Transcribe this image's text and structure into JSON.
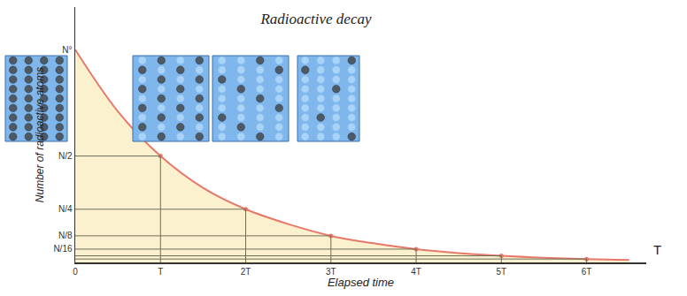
{
  "chart_data": {
    "type": "area",
    "title": "Radioactive decay",
    "x_label": "Elapsed time",
    "y_label": "Number of radioactive atoms",
    "x_unit_label": "T",
    "x": [
      0,
      0.5,
      1,
      1.5,
      2,
      2.5,
      3,
      3.5,
      4,
      4.5,
      5,
      5.5,
      6,
      6.5
    ],
    "values": [
      1,
      0.71,
      0.5,
      0.35,
      0.25,
      0.18,
      0.125,
      0.09,
      0.0625,
      0.044,
      0.031,
      0.022,
      0.016,
      0.011
    ],
    "color": "#e8786a",
    "xlim": [
      0,
      6.7
    ],
    "xticks": [
      0,
      {
        "value": 1,
        "label": "T"
      },
      {
        "value": 2,
        "label": "2T"
      },
      {
        "value": 3,
        "label": "3T"
      },
      {
        "value": 4,
        "label": "4T"
      },
      {
        "value": 5,
        "label": "5T"
      },
      {
        "value": 6,
        "label": "6T"
      }
    ],
    "ylim": [
      0,
      1.2
    ],
    "yticks": [
      {
        "value": 0.0625,
        "label": "N/16"
      },
      {
        "value": 0.125,
        "label": "N/8"
      },
      {
        "value": 0.25,
        "label": "N/4"
      },
      {
        "value": 0.5,
        "label": "N/2"
      },
      {
        "value": 1,
        "label": "N°"
      }
    ],
    "grid": false
  }
}
